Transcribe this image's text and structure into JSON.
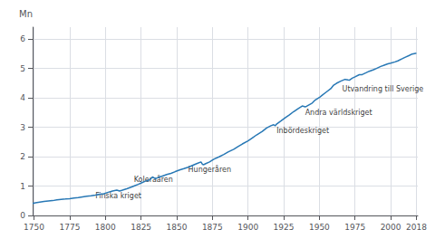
{
  "chart_data": {
    "type": "line",
    "ylabel": "Mn",
    "xlim": [
      1749,
      2019
    ],
    "ylim": [
      0,
      6.4
    ],
    "xticks": [
      1750,
      1775,
      1800,
      1825,
      1850,
      1875,
      1900,
      1925,
      1950,
      1975,
      2000,
      2018
    ],
    "yticks": [
      0,
      1,
      2,
      3,
      4,
      5,
      6
    ],
    "grid": true,
    "color": "#2878b5",
    "annotations": [
      {
        "text": "Finska kriget",
        "x": 1793,
        "y": 0.55
      },
      {
        "text": "Koleraåren",
        "x": 1820,
        "y": 1.1
      },
      {
        "text": "Hungeråren",
        "x": 1858,
        "y": 1.44
      },
      {
        "text": "Inbördeskriget",
        "x": 1920,
        "y": 2.75
      },
      {
        "text": "Andra världskriget",
        "x": 1940,
        "y": 3.38
      },
      {
        "text": "Utvandring till Sverige",
        "x": 1966,
        "y": 4.18
      }
    ],
    "x": [
      1749,
      1751,
      1754,
      1757,
      1760,
      1763,
      1766,
      1769,
      1772,
      1775,
      1778,
      1781,
      1784,
      1787,
      1790,
      1793,
      1796,
      1799,
      1802,
      1805,
      1808,
      1810,
      1812,
      1815,
      1818,
      1820,
      1823,
      1825,
      1828,
      1831,
      1833,
      1835,
      1837,
      1840,
      1843,
      1846,
      1849,
      1852,
      1855,
      1858,
      1861,
      1864,
      1867,
      1868,
      1869,
      1870,
      1873,
      1876,
      1880,
      1883,
      1886,
      1890,
      1893,
      1896,
      1900,
      1903,
      1906,
      1910,
      1913,
      1916,
      1918,
      1919,
      1920,
      1923,
      1926,
      1929,
      1932,
      1935,
      1938,
      1940,
      1941,
      1943,
      1945,
      1947,
      1950,
      1952,
      1955,
      1958,
      1960,
      1962,
      1965,
      1968,
      1970,
      1971,
      1973,
      1975,
      1978,
      1980,
      1983,
      1985,
      1988,
      1990,
      1993,
      1995,
      1998,
      2000,
      2003,
      2005,
      2008,
      2010,
      2013,
      2015,
      2018
    ],
    "values": [
      0.4104,
      0.429,
      0.455,
      0.476,
      0.491,
      0.504,
      0.529,
      0.547,
      0.558,
      0.572,
      0.593,
      0.609,
      0.63,
      0.651,
      0.672,
      0.695,
      0.72,
      0.741,
      0.789,
      0.832,
      0.863,
      0.832,
      0.862,
      0.91,
      0.96,
      1.0,
      1.059,
      1.1,
      1.165,
      1.21,
      1.31,
      1.25,
      1.29,
      1.34,
      1.39,
      1.43,
      1.49,
      1.545,
      1.59,
      1.64,
      1.7,
      1.76,
      1.82,
      1.74,
      1.724,
      1.754,
      1.82,
      1.91,
      2.0,
      2.074,
      2.157,
      2.25,
      2.34,
      2.43,
      2.536,
      2.634,
      2.738,
      2.858,
      2.973,
      3.05,
      3.085,
      3.047,
      3.106,
      3.212,
      3.32,
      3.42,
      3.53,
      3.63,
      3.72,
      3.695,
      3.71,
      3.768,
      3.82,
      3.92,
      4.009,
      4.09,
      4.2,
      4.31,
      4.43,
      4.491,
      4.564,
      4.626,
      4.606,
      4.598,
      4.666,
      4.711,
      4.785,
      4.788,
      4.856,
      4.902,
      4.954,
      4.998,
      5.066,
      5.099,
      5.153,
      5.176,
      5.219,
      5.255,
      5.326,
      5.375,
      5.439,
      5.487,
      5.513
    ]
  }
}
